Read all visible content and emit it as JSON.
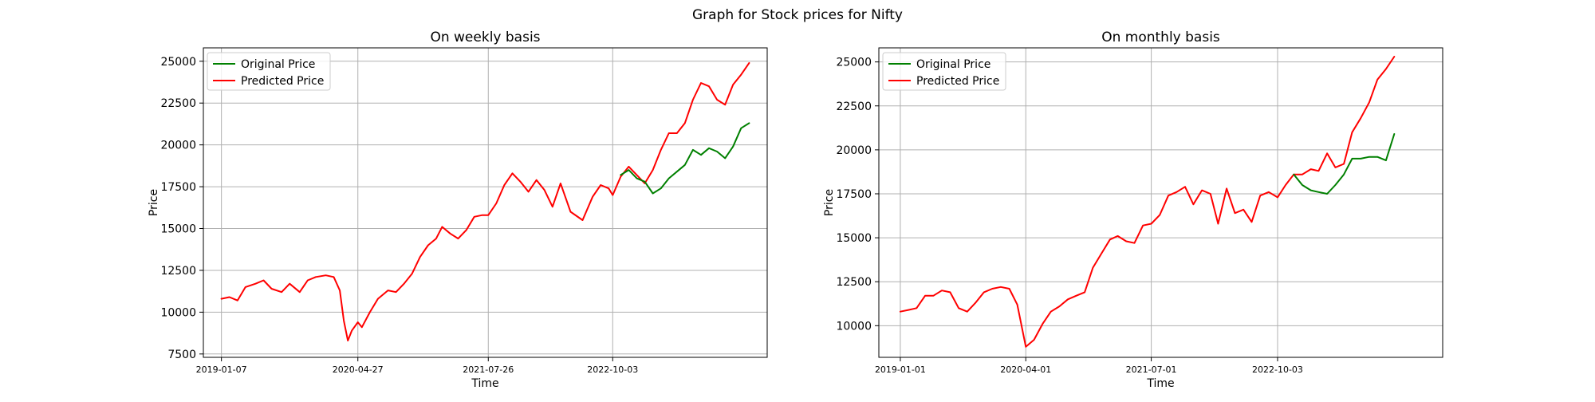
{
  "figure": {
    "suptitle": "Graph for Stock prices for Nifty"
  },
  "colors": {
    "original": "#008000",
    "predicted": "#ff0000",
    "grid": "#b0b0b0",
    "axes": "#000000",
    "legend_border": "#cccccc"
  },
  "chart_data": [
    {
      "type": "line",
      "title": "On weekly basis",
      "xlabel": "Time",
      "ylabel": "Price",
      "x_ticks": [
        "2019-01-07",
        "2020-04-27",
        "2021-07-26",
        "2022-10-03"
      ],
      "xlim": [
        "2018-11-05",
        "2024-03-25"
      ],
      "ylim": [
        7300,
        25800
      ],
      "y_ticks": [
        7500,
        10000,
        12500,
        15000,
        17500,
        20000,
        22500,
        25000
      ],
      "grid": true,
      "legend_position": "upper left",
      "legend": [
        "Original Price",
        "Predicted Price"
      ],
      "series": [
        {
          "name": "Predicted Price",
          "color_key": "predicted",
          "points": [
            [
              "2019-01-07",
              10800
            ],
            [
              "2019-02-04",
              10900
            ],
            [
              "2019-03-04",
              10700
            ],
            [
              "2019-04-01",
              11500
            ],
            [
              "2019-05-06",
              11700
            ],
            [
              "2019-06-03",
              11900
            ],
            [
              "2019-07-01",
              11400
            ],
            [
              "2019-08-05",
              11200
            ],
            [
              "2019-09-02",
              11700
            ],
            [
              "2019-10-07",
              11200
            ],
            [
              "2019-11-04",
              11900
            ],
            [
              "2019-12-02",
              12100
            ],
            [
              "2020-01-06",
              12200
            ],
            [
              "2020-02-03",
              12100
            ],
            [
              "2020-02-24",
              11300
            ],
            [
              "2020-03-09",
              9500
            ],
            [
              "2020-03-23",
              8300
            ],
            [
              "2020-04-06",
              8900
            ],
            [
              "2020-04-27",
              9400
            ],
            [
              "2020-05-11",
              9100
            ],
            [
              "2020-06-08",
              10000
            ],
            [
              "2020-07-06",
              10800
            ],
            [
              "2020-08-10",
              11300
            ],
            [
              "2020-09-07",
              11200
            ],
            [
              "2020-10-05",
              11700
            ],
            [
              "2020-11-02",
              12300
            ],
            [
              "2020-11-30",
              13300
            ],
            [
              "2020-12-28",
              14000
            ],
            [
              "2021-01-25",
              14400
            ],
            [
              "2021-02-15",
              15100
            ],
            [
              "2021-03-15",
              14700
            ],
            [
              "2021-04-12",
              14400
            ],
            [
              "2021-05-10",
              14900
            ],
            [
              "2021-06-07",
              15700
            ],
            [
              "2021-07-05",
              15800
            ],
            [
              "2021-07-26",
              15800
            ],
            [
              "2021-08-23",
              16500
            ],
            [
              "2021-09-20",
              17600
            ],
            [
              "2021-10-18",
              18300
            ],
            [
              "2021-11-15",
              17800
            ],
            [
              "2021-12-13",
              17200
            ],
            [
              "2022-01-10",
              17900
            ],
            [
              "2022-02-07",
              17300
            ],
            [
              "2022-03-07",
              16300
            ],
            [
              "2022-04-04",
              17700
            ],
            [
              "2022-05-09",
              16000
            ],
            [
              "2022-06-20",
              15500
            ],
            [
              "2022-07-25",
              16900
            ],
            [
              "2022-08-22",
              17600
            ],
            [
              "2022-09-19",
              17400
            ],
            [
              "2022-10-03",
              17000
            ],
            [
              "2022-10-31",
              18100
            ],
            [
              "2022-11-28",
              18700
            ],
            [
              "2022-12-26",
              18200
            ],
            [
              "2023-01-23",
              17700
            ],
            [
              "2023-02-20",
              18500
            ],
            [
              "2023-03-20",
              19700
            ],
            [
              "2023-04-17",
              20700
            ],
            [
              "2023-05-15",
              20700
            ],
            [
              "2023-06-12",
              21300
            ],
            [
              "2023-07-10",
              22700
            ],
            [
              "2023-08-07",
              23700
            ],
            [
              "2023-09-04",
              23500
            ],
            [
              "2023-10-02",
              22700
            ],
            [
              "2023-10-30",
              22400
            ],
            [
              "2023-11-27",
              23600
            ],
            [
              "2023-12-25",
              24200
            ],
            [
              "2024-01-22",
              24900
            ]
          ]
        },
        {
          "name": "Original Price",
          "color_key": "original",
          "points": [
            [
              "2022-10-31",
              18200
            ],
            [
              "2022-11-28",
              18500
            ],
            [
              "2022-12-26",
              18000
            ],
            [
              "2023-01-23",
              17800
            ],
            [
              "2023-02-20",
              17100
            ],
            [
              "2023-03-20",
              17400
            ],
            [
              "2023-04-17",
              18000
            ],
            [
              "2023-05-15",
              18400
            ],
            [
              "2023-06-12",
              18800
            ],
            [
              "2023-07-10",
              19700
            ],
            [
              "2023-08-07",
              19400
            ],
            [
              "2023-09-04",
              19800
            ],
            [
              "2023-10-02",
              19600
            ],
            [
              "2023-10-30",
              19200
            ],
            [
              "2023-11-27",
              19900
            ],
            [
              "2023-12-25",
              21000
            ],
            [
              "2024-01-22",
              21300
            ]
          ]
        }
      ]
    },
    {
      "type": "line",
      "title": "On monthly basis",
      "xlabel": "Time",
      "ylabel": "Price",
      "x_ticks": [
        "2019-01-01",
        "2020-04-01",
        "2021-07-01",
        "2022-10-03"
      ],
      "xlim": [
        "2018-10-15",
        "2024-05-25"
      ],
      "ylim": [
        8200,
        25800
      ],
      "y_ticks": [
        10000,
        12500,
        15000,
        17500,
        20000,
        22500,
        25000
      ],
      "grid": true,
      "legend_position": "upper left",
      "legend": [
        "Original Price",
        "Predicted Price"
      ],
      "series": [
        {
          "name": "Predicted Price",
          "color_key": "predicted",
          "points": [
            [
              "2019-01-01",
              10800
            ],
            [
              "2019-02-01",
              10900
            ],
            [
              "2019-03-01",
              11000
            ],
            [
              "2019-04-01",
              11700
            ],
            [
              "2019-05-01",
              11700
            ],
            [
              "2019-06-01",
              12000
            ],
            [
              "2019-07-01",
              11900
            ],
            [
              "2019-08-01",
              11000
            ],
            [
              "2019-09-01",
              10800
            ],
            [
              "2019-10-01",
              11300
            ],
            [
              "2019-11-01",
              11900
            ],
            [
              "2019-12-01",
              12100
            ],
            [
              "2020-01-01",
              12200
            ],
            [
              "2020-02-01",
              12100
            ],
            [
              "2020-03-01",
              11200
            ],
            [
              "2020-04-01",
              8800
            ],
            [
              "2020-05-01",
              9200
            ],
            [
              "2020-06-01",
              10100
            ],
            [
              "2020-07-01",
              10800
            ],
            [
              "2020-08-01",
              11100
            ],
            [
              "2020-09-01",
              11500
            ],
            [
              "2020-10-01",
              11700
            ],
            [
              "2020-11-01",
              11900
            ],
            [
              "2020-12-01",
              13300
            ],
            [
              "2021-01-01",
              14100
            ],
            [
              "2021-02-01",
              14900
            ],
            [
              "2021-03-01",
              15100
            ],
            [
              "2021-04-01",
              14800
            ],
            [
              "2021-05-01",
              14700
            ],
            [
              "2021-06-01",
              15700
            ],
            [
              "2021-07-01",
              15800
            ],
            [
              "2021-08-01",
              16300
            ],
            [
              "2021-09-01",
              17400
            ],
            [
              "2021-10-01",
              17600
            ],
            [
              "2021-11-01",
              17900
            ],
            [
              "2021-12-01",
              16900
            ],
            [
              "2022-01-01",
              17700
            ],
            [
              "2022-02-01",
              17500
            ],
            [
              "2022-03-01",
              15800
            ],
            [
              "2022-04-01",
              17800
            ],
            [
              "2022-05-01",
              16400
            ],
            [
              "2022-06-01",
              16600
            ],
            [
              "2022-07-01",
              15900
            ],
            [
              "2022-08-01",
              17400
            ],
            [
              "2022-09-01",
              17600
            ],
            [
              "2022-10-03",
              17300
            ],
            [
              "2022-11-01",
              18000
            ],
            [
              "2022-12-01",
              18600
            ],
            [
              "2023-01-01",
              18600
            ],
            [
              "2023-02-01",
              18900
            ],
            [
              "2023-03-01",
              18800
            ],
            [
              "2023-04-01",
              19800
            ],
            [
              "2023-05-01",
              19000
            ],
            [
              "2023-06-01",
              19200
            ],
            [
              "2023-07-01",
              21000
            ],
            [
              "2023-08-01",
              21800
            ],
            [
              "2023-09-01",
              22700
            ],
            [
              "2023-10-01",
              24000
            ],
            [
              "2023-11-01",
              24600
            ],
            [
              "2023-12-01",
              25300
            ]
          ]
        },
        {
          "name": "Original Price",
          "color_key": "original",
          "points": [
            [
              "2022-12-01",
              18600
            ],
            [
              "2023-01-01",
              18000
            ],
            [
              "2023-02-01",
              17700
            ],
            [
              "2023-03-01",
              17600
            ],
            [
              "2023-04-01",
              17500
            ],
            [
              "2023-05-01",
              18000
            ],
            [
              "2023-06-01",
              18600
            ],
            [
              "2023-07-01",
              19500
            ],
            [
              "2023-08-01",
              19500
            ],
            [
              "2023-09-01",
              19600
            ],
            [
              "2023-10-01",
              19600
            ],
            [
              "2023-11-01",
              19400
            ],
            [
              "2023-12-01",
              20900
            ]
          ]
        }
      ]
    }
  ]
}
